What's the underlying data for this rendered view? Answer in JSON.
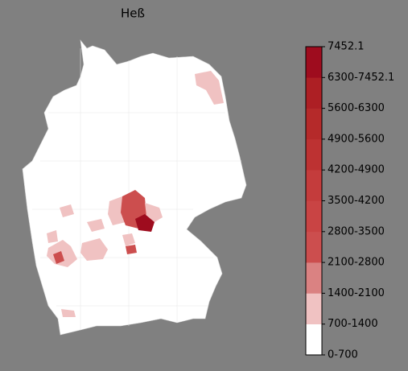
{
  "title": "Heß",
  "legend": {
    "labels": [
      "0-700",
      "700-1400",
      "1400-2100",
      "2100-2800",
      "2800-3500",
      "3500-4200",
      "4200-4900",
      "4900-5600",
      "5600-6300",
      "6300-7452.1",
      "7452.1"
    ],
    "colors": [
      "#ffffff",
      "#f0c2c2",
      "#da8282",
      "#cc4e4e",
      "#c94444",
      "#c43c3c",
      "#bd3232",
      "#b52a2a",
      "#ad1f24",
      "#9e0c1e"
    ]
  }
}
